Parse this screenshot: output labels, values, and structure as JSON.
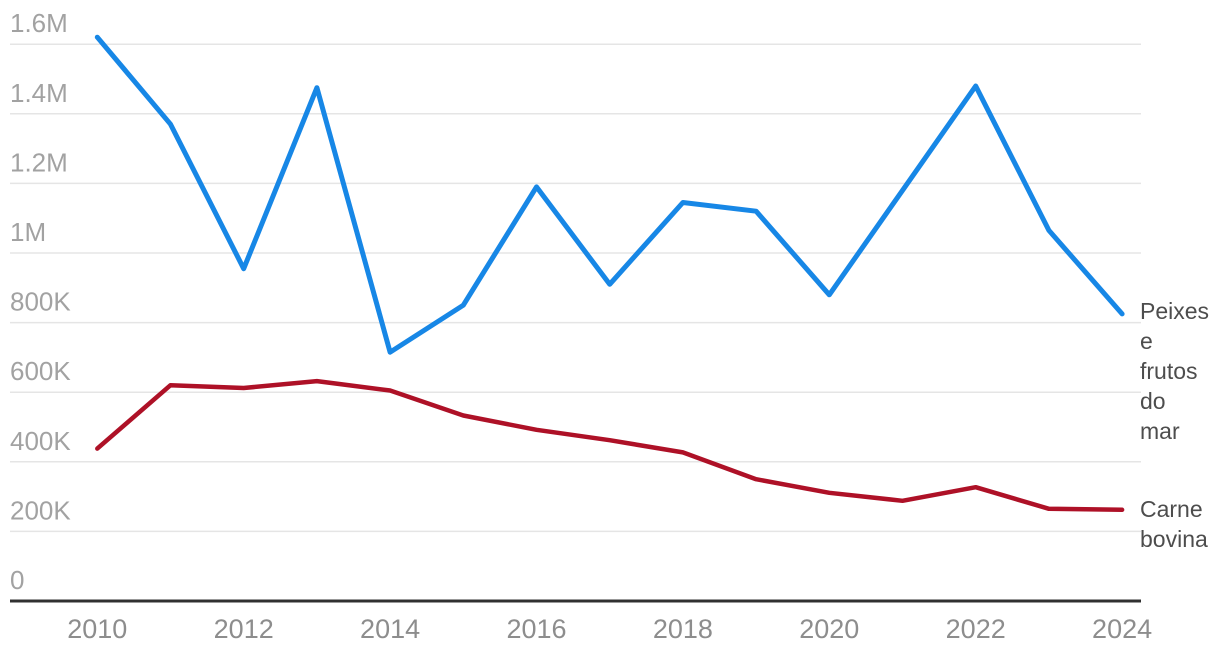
{
  "chart_data": {
    "type": "line",
    "title": "",
    "xlabel": "",
    "ylabel": "",
    "x": [
      2010,
      2011,
      2012,
      2013,
      2014,
      2015,
      2016,
      2017,
      2018,
      2019,
      2020,
      2021,
      2022,
      2023,
      2024
    ],
    "series": [
      {
        "name": "Peixes e frutos do mar",
        "label_lines": [
          "Peixes",
          "e",
          "frutos",
          "do",
          "mar"
        ],
        "color": "#1787e6",
        "values": [
          1620000,
          1370000,
          955000,
          1475000,
          715000,
          850000,
          1190000,
          910000,
          1145000,
          1120000,
          880000,
          1180000,
          1480000,
          1065000,
          825000
        ]
      },
      {
        "name": "Carne bovina",
        "label_lines": [
          "Carne",
          "bovina"
        ],
        "color": "#ae1127",
        "values": [
          438000,
          620000,
          612000,
          632000,
          605000,
          533000,
          492000,
          462000,
          427000,
          350000,
          311000,
          288000,
          327000,
          265000,
          262000
        ]
      }
    ],
    "yticks": [
      {
        "label": "0",
        "value": 0
      },
      {
        "label": "200K",
        "value": 200000
      },
      {
        "label": "400K",
        "value": 400000
      },
      {
        "label": "600K",
        "value": 600000
      },
      {
        "label": "800K",
        "value": 800000
      },
      {
        "label": "1M",
        "value": 1000000
      },
      {
        "label": "1.2M",
        "value": 1200000
      },
      {
        "label": "1.4M",
        "value": 1400000
      },
      {
        "label": "1.6M",
        "value": 1600000
      }
    ],
    "xticks": [
      "2010",
      "2012",
      "2014",
      "2016",
      "2018",
      "2020",
      "2022",
      "2024"
    ],
    "ylim": [
      0,
      1650000
    ],
    "xlim": [
      2010,
      2024
    ],
    "grid": true,
    "legend_position": "right-end-labels",
    "colors": {
      "background": "#ffffff",
      "gridline": "#e5e5e5",
      "axis_line": "#303030",
      "ytick_label": "#a2a2a2",
      "xtick_label": "#8d8d8d",
      "series_label": "#4d4d4d"
    }
  }
}
